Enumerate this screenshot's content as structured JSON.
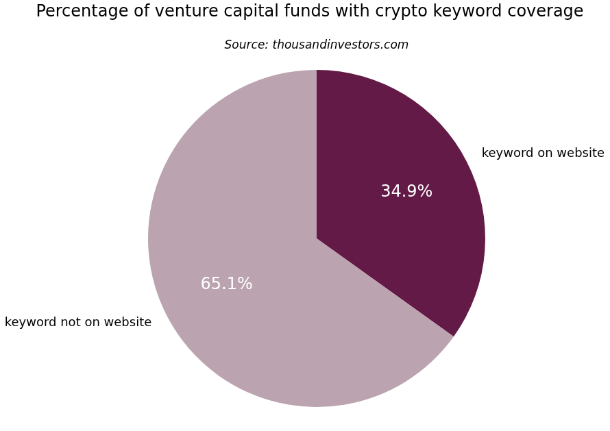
{
  "chart_data": {
    "type": "pie",
    "title": "Percentage of venture capital funds with crypto keyword coverage",
    "subtitle": "Source: thousandinvestors.com",
    "categories": [
      "keyword on website",
      "keyword not on website"
    ],
    "values": [
      34.9,
      65.1
    ],
    "value_labels": [
      "34.9%",
      "65.1%"
    ],
    "colors": [
      "#641a47",
      "#bba4af"
    ],
    "data_labels": true
  }
}
